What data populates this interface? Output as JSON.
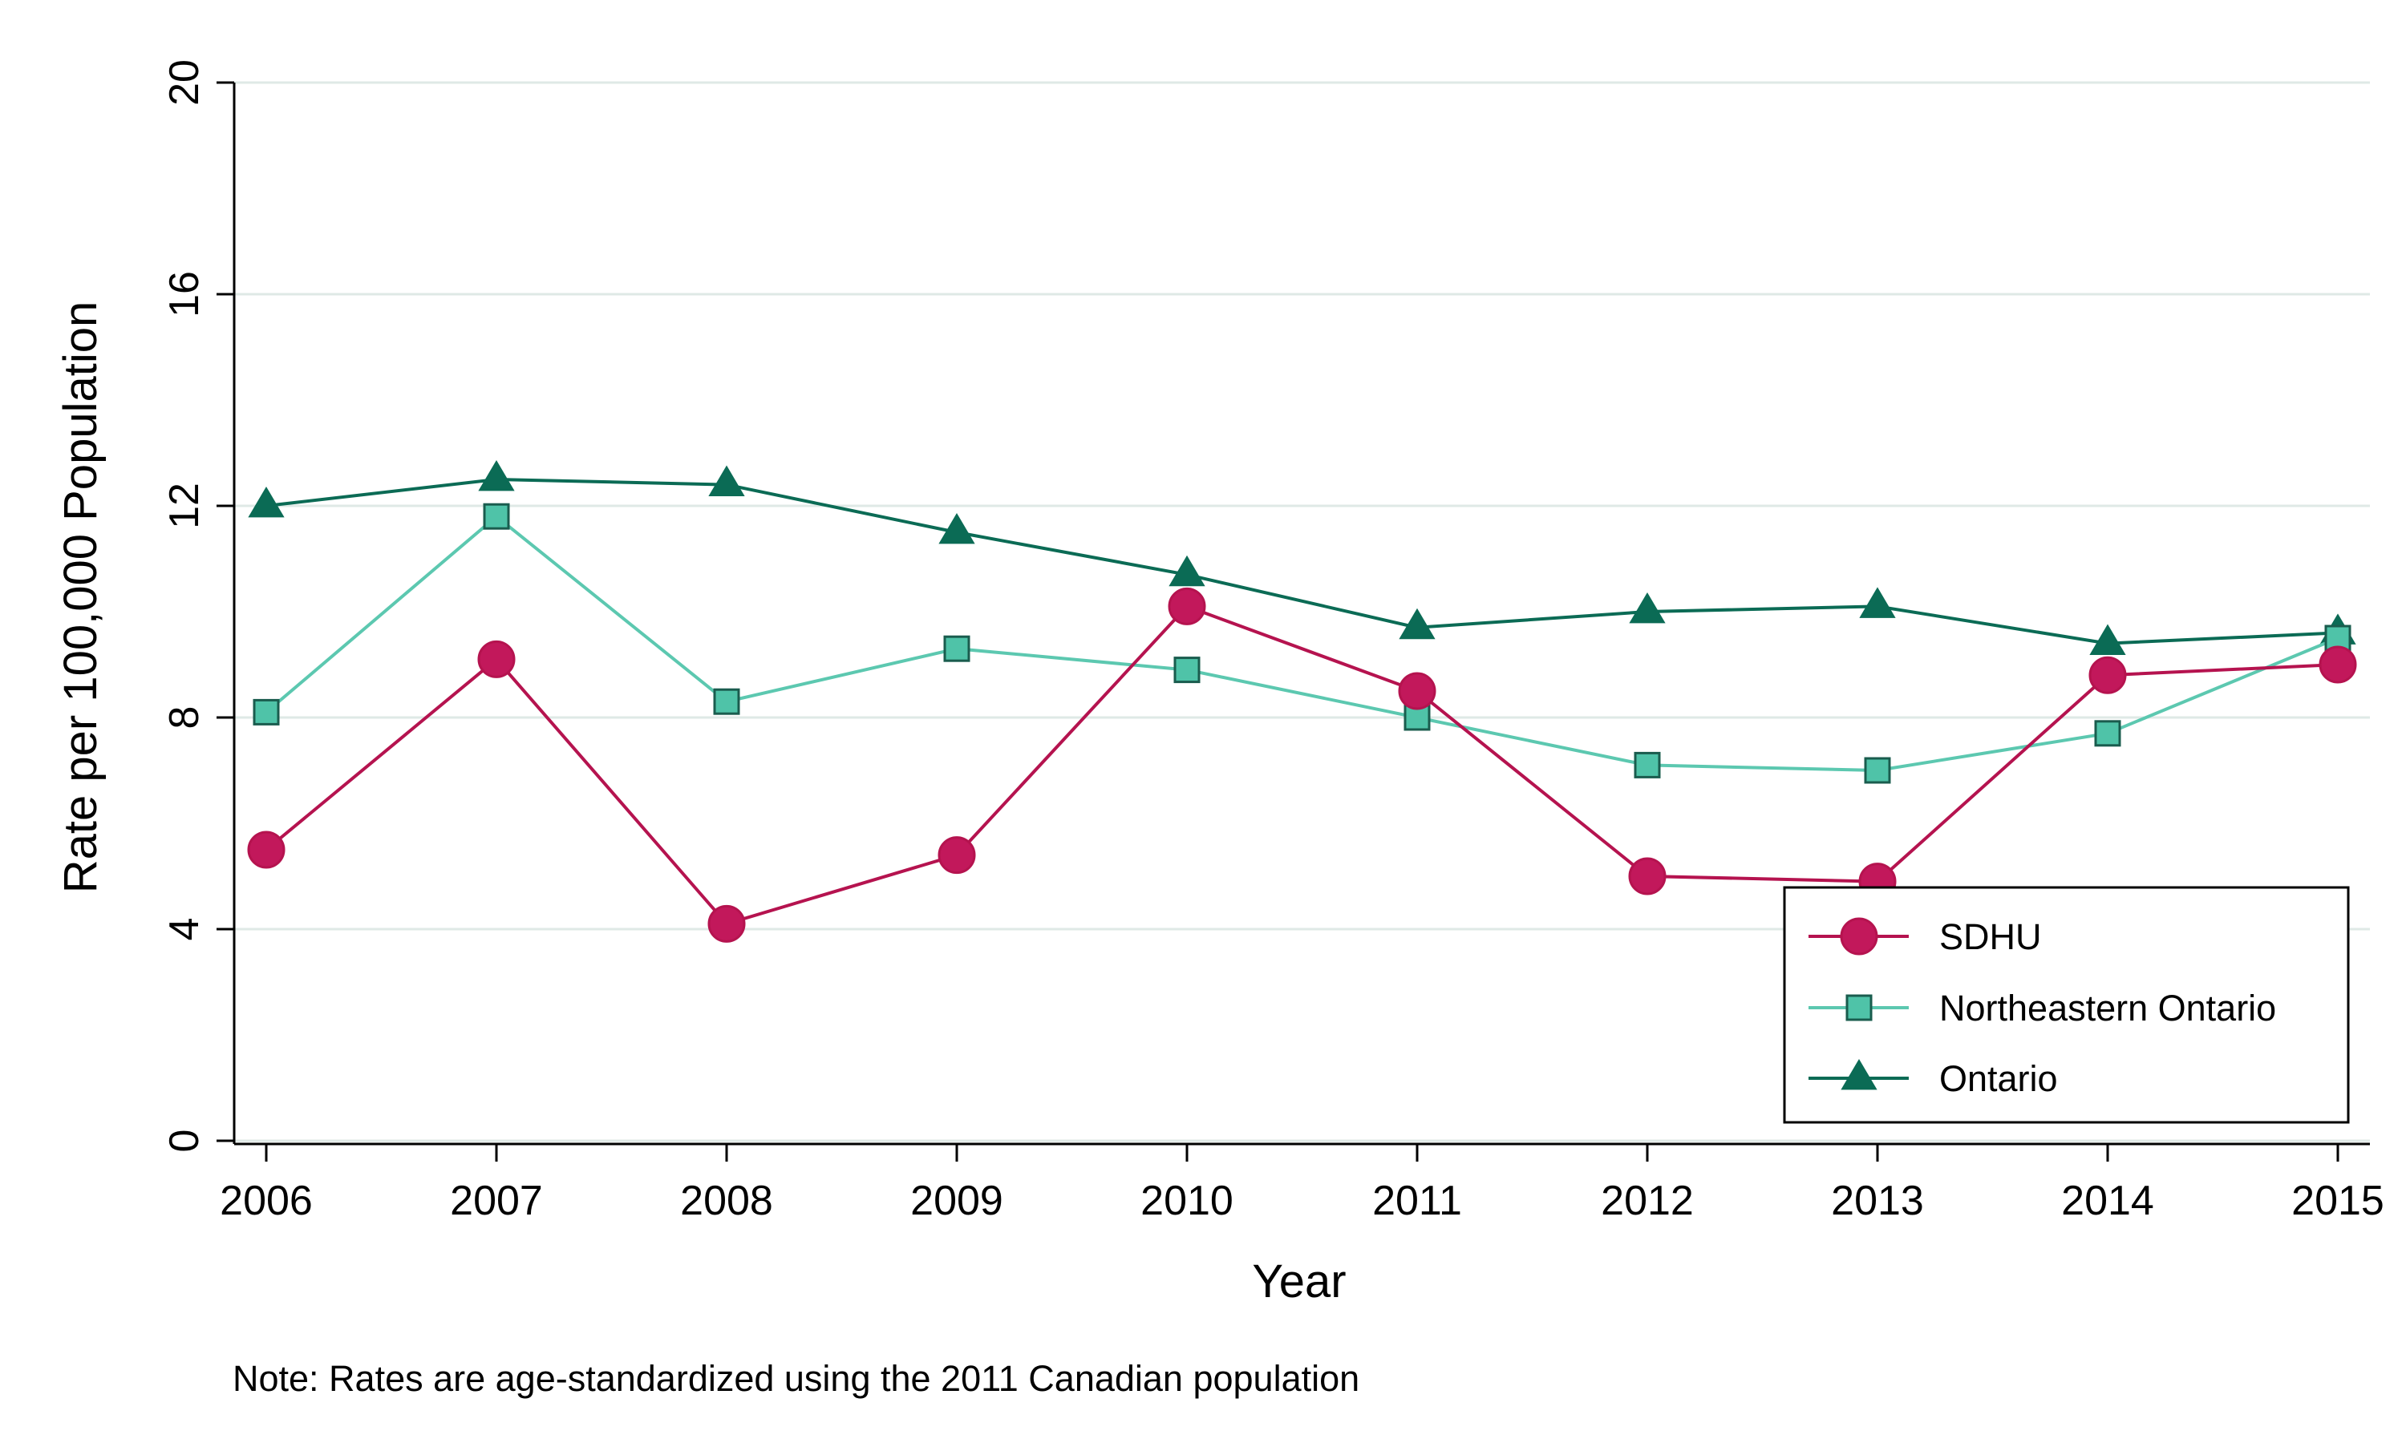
{
  "chart_data": {
    "type": "line",
    "title": "",
    "xlabel": "Year",
    "ylabel": "Rate per 100,000 Population",
    "note": "Note: Rates are age-standardized using the 2011 Canadian population",
    "x": [
      2006,
      2007,
      2008,
      2009,
      2010,
      2011,
      2012,
      2013,
      2014,
      2015
    ],
    "x_tick_labels": [
      "2006",
      "2007",
      "2008",
      "2009",
      "2010",
      "2011",
      "2012",
      "2013",
      "2014",
      "2015"
    ],
    "ylim": [
      0,
      20
    ],
    "y_ticks": [
      0,
      4,
      8,
      12,
      16,
      20
    ],
    "y_tick_labels": [
      "0",
      "4",
      "8",
      "12",
      "16",
      "20"
    ],
    "grid": true,
    "legend_position": "bottom-right",
    "series": [
      {
        "name": "SDHU",
        "marker": "circle",
        "color": "#b5134f",
        "marker_fill": "#c2185b",
        "values": [
          5.5,
          9.1,
          4.1,
          5.4,
          10.1,
          8.5,
          5.0,
          4.9,
          8.8,
          9.0
        ]
      },
      {
        "name": "Northeastern Ontario",
        "marker": "square",
        "color": "#5cc8b0",
        "marker_fill": "#4fc3a8",
        "values": [
          8.1,
          11.8,
          8.3,
          9.3,
          8.9,
          8.0,
          7.1,
          7.0,
          7.7,
          9.5
        ]
      },
      {
        "name": "Ontario",
        "marker": "triangle",
        "color": "#0b6b55",
        "marker_fill": "#0b6b55",
        "values": [
          12.0,
          12.5,
          12.4,
          11.5,
          10.7,
          9.7,
          10.0,
          10.1,
          9.4,
          9.6
        ]
      }
    ]
  }
}
